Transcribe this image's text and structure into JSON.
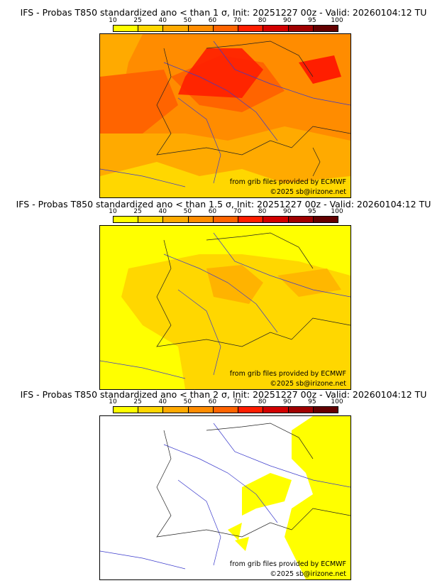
{
  "colorbar": {
    "ticks": [
      "10",
      "25",
      "40",
      "50",
      "60",
      "70",
      "80",
      "90",
      "95",
      "100"
    ],
    "colors": [
      "#ffff00",
      "#ffd700",
      "#ffaa00",
      "#ff8c00",
      "#ff6400",
      "#ff1e00",
      "#d20000",
      "#a00000",
      "#640000"
    ]
  },
  "panels": [
    {
      "title": "IFS - Probas T850  standardized ano < than 1 σ, Init: 20251227 00z - Valid: 20260104:12 TU"
    },
    {
      "title": "IFS - Probas T850  standardized ano < than 1.5 σ, Init: 20251227 00z - Valid: 20260104:12 TU"
    },
    {
      "title": "IFS - Probas T850  standardized ano < than 2 σ, Init: 20251227 00z - Valid: 20260104:12 TU"
    }
  ],
  "credits": {
    "source": "from grib files provided by ECMWF",
    "copyright": "©2025 sb@irizone.net"
  }
}
